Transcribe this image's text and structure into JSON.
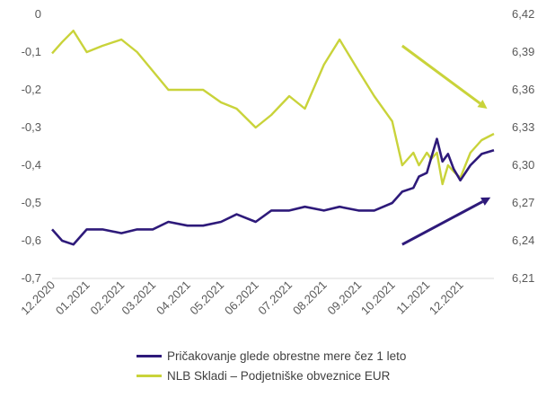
{
  "colors": {
    "series_rate": "#2e1a7a",
    "series_fund": "#c9d33a",
    "axis_text": "#595959",
    "axis_line": "#d9d9d9"
  },
  "chart_data": {
    "type": "line",
    "title": "",
    "xlabel": "",
    "ylabel": "",
    "x_tick_labels": [
      "12.2020",
      "01.2021",
      "02.2021",
      "03.2021",
      "04.2021",
      "05.2021",
      "06.2021",
      "07.2021",
      "08.2021",
      "09.2021",
      "10.2021",
      "11.2021",
      "12.2021"
    ],
    "y_left": {
      "lim": [
        -0.7,
        0
      ],
      "ticks": [
        "0",
        "-0,1",
        "-0,2",
        "-0,3",
        "-0,4",
        "-0,5",
        "-0,6",
        "-0,7"
      ],
      "tick_values": [
        0,
        -0.1,
        -0.2,
        -0.3,
        -0.4,
        -0.5,
        -0.6,
        -0.7
      ]
    },
    "y_right": {
      "lim": [
        6.21,
        6.42
      ],
      "ticks": [
        "6,42",
        "6,39",
        "6,36",
        "6,33",
        "6,30",
        "6,27",
        "6,24",
        "6,21"
      ],
      "tick_values": [
        6.42,
        6.39,
        6.36,
        6.33,
        6.3,
        6.27,
        6.24,
        6.21
      ]
    },
    "grid": false,
    "legend_placement": "bottom",
    "series": [
      {
        "name": "Pričakovanje glede obrestne mere čez 1 leto",
        "axis": "left",
        "color_key": "series_rate",
        "x": [
          "2020-12-01",
          "2020-12-10",
          "2020-12-20",
          "2021-01-01",
          "2021-01-15",
          "2021-02-01",
          "2021-02-15",
          "2021-03-01",
          "2021-03-15",
          "2021-04-01",
          "2021-04-15",
          "2021-05-01",
          "2021-05-15",
          "2021-06-01",
          "2021-06-15",
          "2021-07-01",
          "2021-07-15",
          "2021-08-01",
          "2021-08-15",
          "2021-09-01",
          "2021-09-15",
          "2021-10-01",
          "2021-10-10",
          "2021-10-20",
          "2021-10-25",
          "2021-11-01",
          "2021-11-05",
          "2021-11-10",
          "2021-11-15",
          "2021-11-20",
          "2021-11-25",
          "2021-12-01",
          "2021-12-10",
          "2021-12-20",
          "2021-12-31"
        ],
        "y": [
          -0.57,
          -0.6,
          -0.61,
          -0.57,
          -0.57,
          -0.58,
          -0.57,
          -0.57,
          -0.55,
          -0.56,
          -0.56,
          -0.55,
          -0.53,
          -0.55,
          -0.52,
          -0.52,
          -0.51,
          -0.52,
          -0.51,
          -0.52,
          -0.52,
          -0.5,
          -0.47,
          -0.46,
          -0.43,
          -0.42,
          -0.38,
          -0.33,
          -0.39,
          -0.37,
          -0.41,
          -0.44,
          -0.4,
          -0.37,
          -0.36
        ]
      },
      {
        "name": "NLB Skladi – Podjetniške obveznice EUR",
        "axis": "right",
        "color_key": "series_fund",
        "x": [
          "2020-12-01",
          "2020-12-10",
          "2020-12-20",
          "2021-01-01",
          "2021-01-15",
          "2021-02-01",
          "2021-02-15",
          "2021-03-01",
          "2021-03-15",
          "2021-04-01",
          "2021-04-15",
          "2021-05-01",
          "2021-05-15",
          "2021-06-01",
          "2021-06-15",
          "2021-07-01",
          "2021-07-15",
          "2021-08-01",
          "2021-08-15",
          "2021-09-01",
          "2021-09-15",
          "2021-10-01",
          "2021-10-10",
          "2021-10-20",
          "2021-10-25",
          "2021-11-01",
          "2021-11-05",
          "2021-11-10",
          "2021-11-15",
          "2021-11-20",
          "2021-11-25",
          "2021-12-01",
          "2021-12-10",
          "2021-12-20",
          "2021-12-31"
        ],
        "y": [
          6.389,
          6.398,
          6.407,
          6.39,
          6.395,
          6.4,
          6.39,
          6.375,
          6.36,
          6.36,
          6.36,
          6.35,
          6.345,
          6.33,
          6.34,
          6.355,
          6.345,
          6.38,
          6.4,
          6.375,
          6.355,
          6.335,
          6.3,
          6.31,
          6.3,
          6.31,
          6.305,
          6.31,
          6.285,
          6.3,
          6.295,
          6.29,
          6.31,
          6.32,
          6.325
        ]
      }
    ],
    "annotations": [
      {
        "type": "arrow",
        "color_key": "series_fund",
        "from": [
          "2021-10-10",
          6.395
        ],
        "to": [
          "2021-12-25",
          6.345
        ]
      },
      {
        "type": "arrow",
        "color_key": "series_rate",
        "from": [
          "2021-10-10",
          -0.61
        ],
        "to": [
          "2021-12-28",
          -0.485
        ]
      }
    ]
  }
}
